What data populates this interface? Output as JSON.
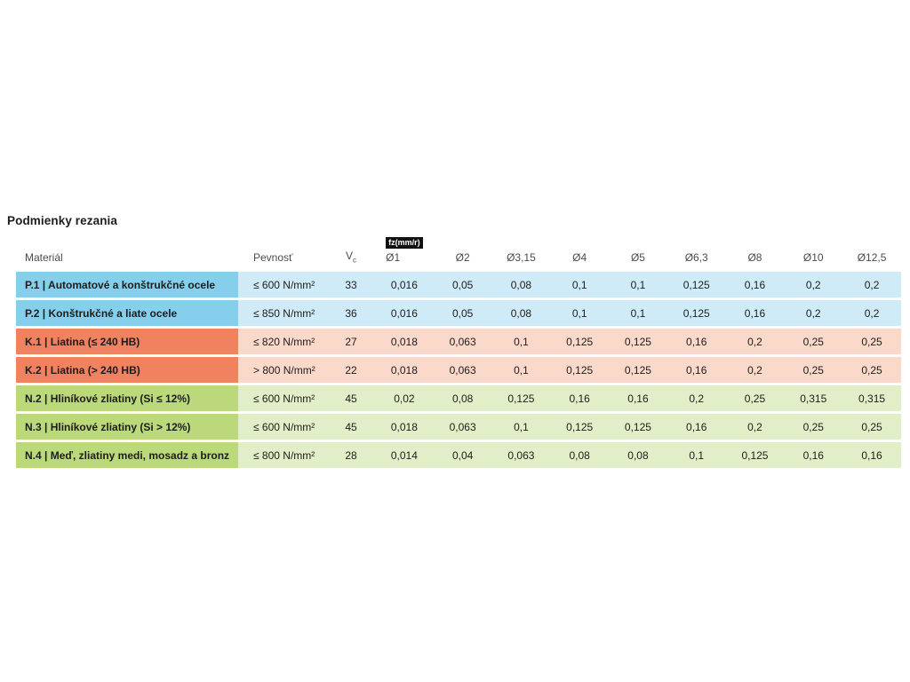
{
  "page": {
    "title": "Podmienky rezania"
  },
  "table": {
    "fz_badge_label": "fz(mm/r)",
    "headers": {
      "material": "Materiál",
      "strength": "Pevnosť",
      "vc_base": "V",
      "vc_subscript": "c",
      "diameters": [
        "Ø1",
        "Ø2",
        "Ø3,15",
        "Ø4",
        "Ø5",
        "Ø6,3",
        "Ø8",
        "Ø10",
        "Ø12,5"
      ]
    },
    "group_colors": {
      "P": {
        "dark": "#85CEEC",
        "light": "#D0EBF8"
      },
      "K": {
        "dark": "#F0825F",
        "light": "#FAD8CA"
      },
      "N": {
        "dark": "#BBD87B",
        "light": "#E2EEC8"
      }
    },
    "rows": [
      {
        "group": "P",
        "material": "P.1 | Automatové a konštrukčné ocele",
        "strength": "≤ 600 N/mm²",
        "vc": "33",
        "feeds": [
          "0,016",
          "0,05",
          "0,08",
          "0,1",
          "0,1",
          "0,125",
          "0,16",
          "0,2",
          "0,2"
        ]
      },
      {
        "group": "P",
        "material": "P.2 | Konštrukčné a liate ocele",
        "strength": "≤ 850 N/mm²",
        "vc": "36",
        "feeds": [
          "0,016",
          "0,05",
          "0,08",
          "0,1",
          "0,1",
          "0,125",
          "0,16",
          "0,2",
          "0,2"
        ]
      },
      {
        "group": "K",
        "material": "K.1 | Liatina (≤ 240 HB)",
        "strength": "≤ 820 N/mm²",
        "vc": "27",
        "feeds": [
          "0,018",
          "0,063",
          "0,1",
          "0,125",
          "0,125",
          "0,16",
          "0,2",
          "0,25",
          "0,25"
        ]
      },
      {
        "group": "K",
        "material": "K.2 | Liatina (> 240 HB)",
        "strength": "> 800 N/mm²",
        "vc": "22",
        "feeds": [
          "0,018",
          "0,063",
          "0,1",
          "0,125",
          "0,125",
          "0,16",
          "0,2",
          "0,25",
          "0,25"
        ]
      },
      {
        "group": "N",
        "material": "N.2 | Hliníkové zliatiny (Si ≤ 12%)",
        "strength": "≤ 600 N/mm²",
        "vc": "45",
        "feeds": [
          "0,02",
          "0,08",
          "0,125",
          "0,16",
          "0,16",
          "0,2",
          "0,25",
          "0,315",
          "0,315"
        ]
      },
      {
        "group": "N",
        "material": "N.3 | Hliníkové zliatiny (Si > 12%)",
        "strength": "≤ 600 N/mm²",
        "vc": "45",
        "feeds": [
          "0,018",
          "0,063",
          "0,1",
          "0,125",
          "0,125",
          "0,16",
          "0,2",
          "0,25",
          "0,25"
        ]
      },
      {
        "group": "N",
        "material": "N.4 | Meď, zliatiny medi, mosadz a bronz",
        "strength": "≤ 800 N/mm²",
        "vc": "28",
        "feeds": [
          "0,014",
          "0,04",
          "0,063",
          "0,08",
          "0,08",
          "0,1",
          "0,125",
          "0,16",
          "0,16"
        ]
      }
    ]
  }
}
